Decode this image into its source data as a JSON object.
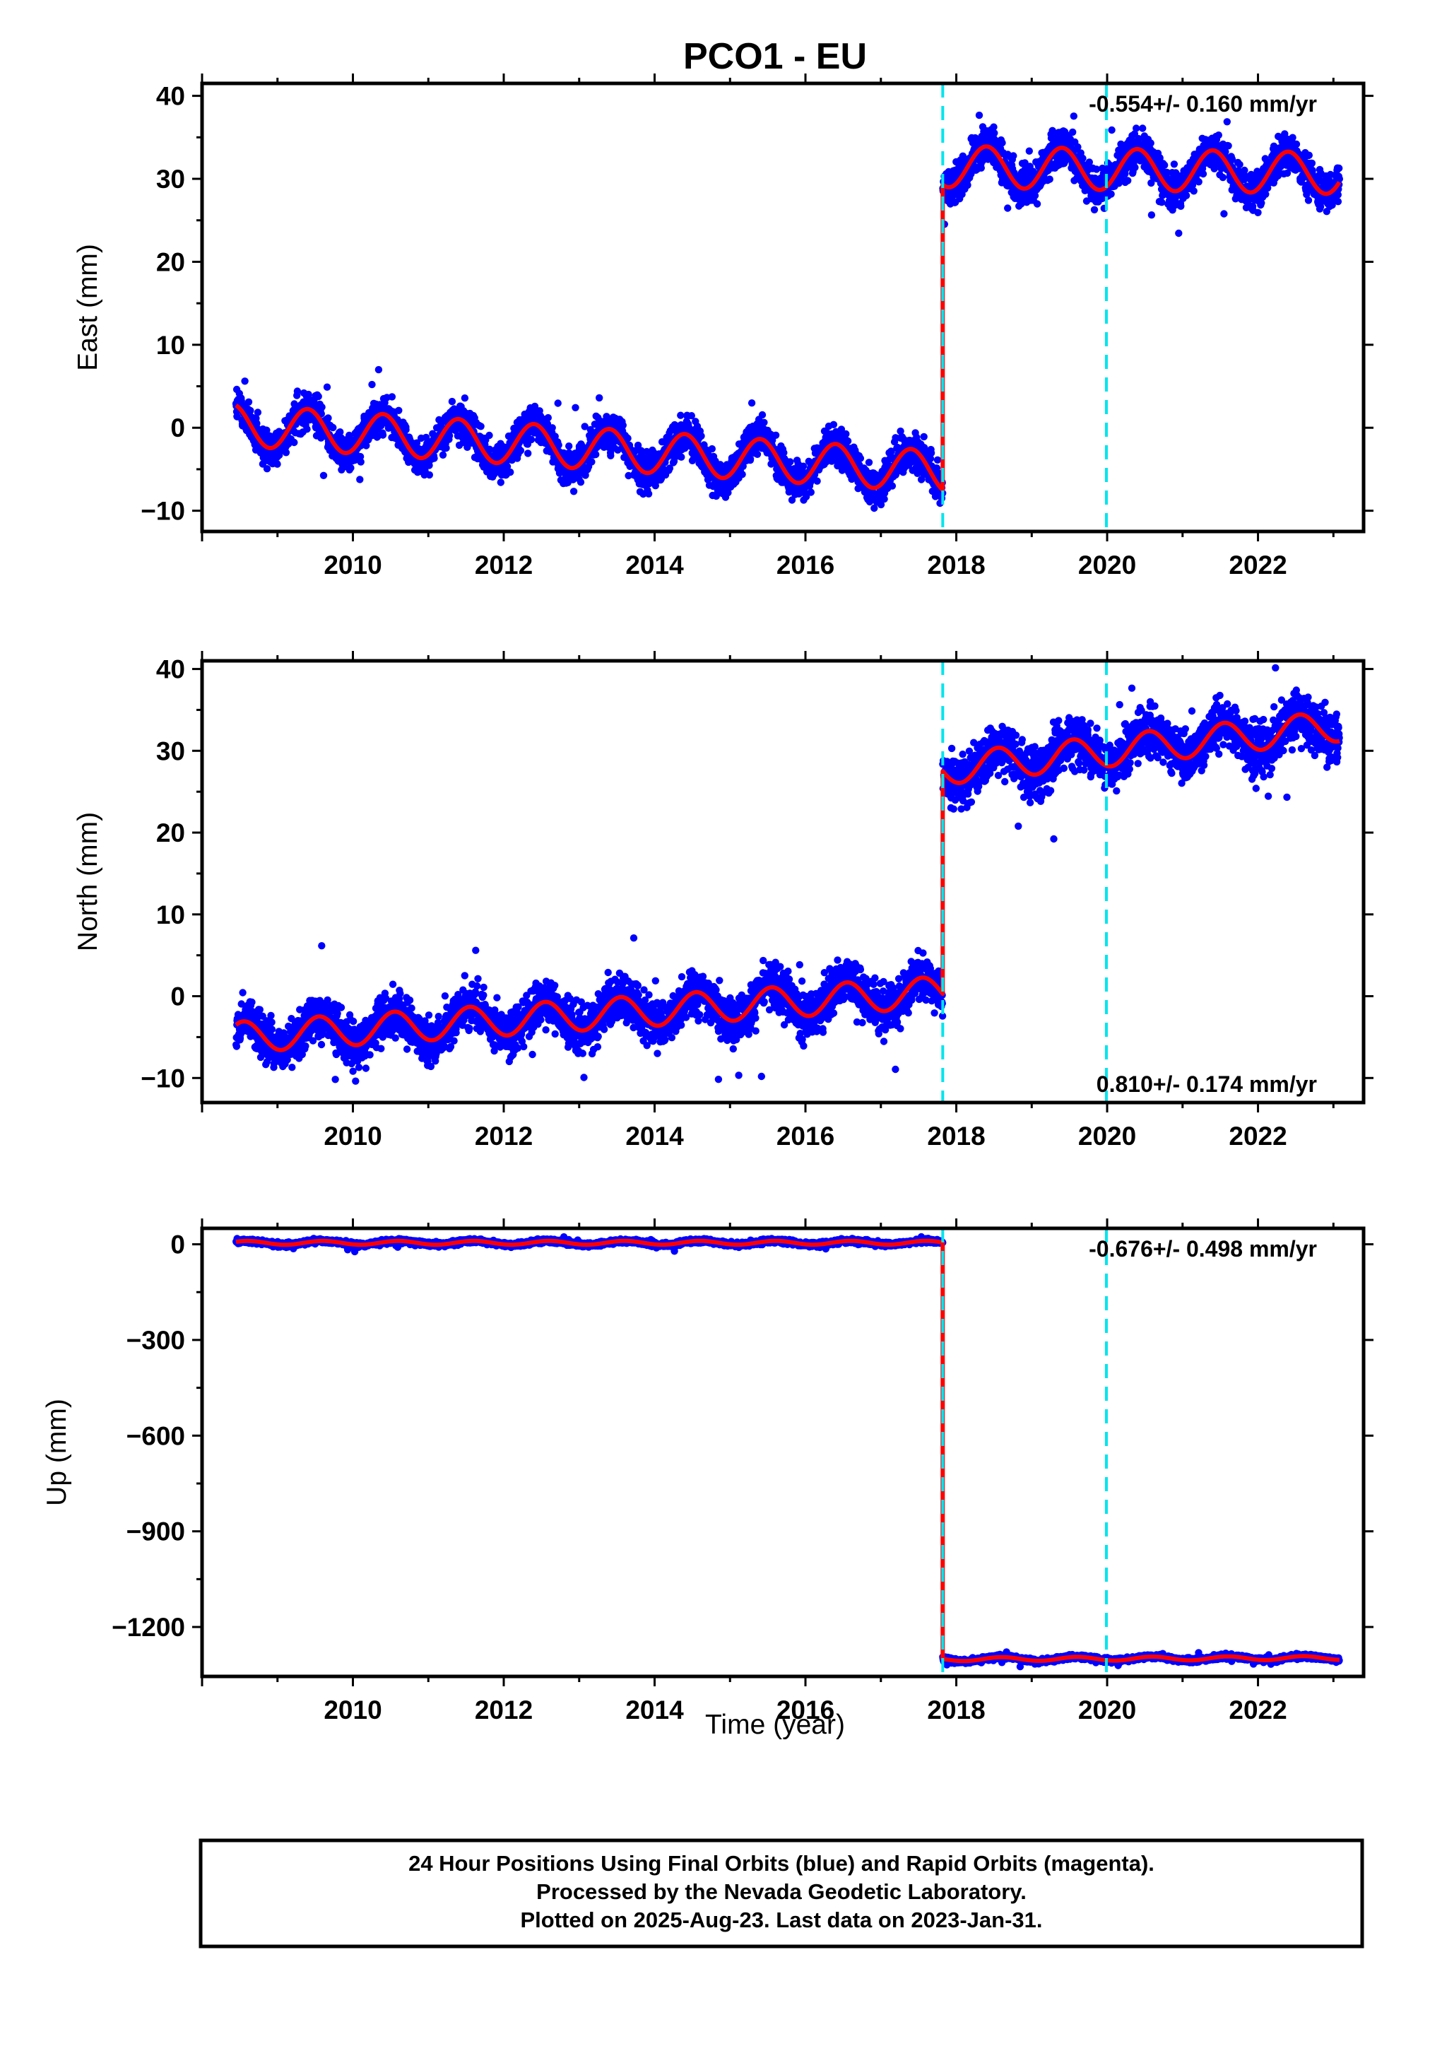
{
  "chart_data": {
    "type": "scatter",
    "title": "PCO1 - EU",
    "xlabel": "Time (year)",
    "xlim": [
      2008.0,
      2023.4
    ],
    "x_ticks": [
      2010,
      2012,
      2014,
      2016,
      2018,
      2020,
      2022
    ],
    "x_tick_labels": [
      "2010",
      "2012",
      "2014",
      "2016",
      "2018",
      "2020",
      "2022"
    ],
    "data_start": 2008.45,
    "data_end": 2023.08,
    "offset_epochs": [
      2017.82,
      2019.99
    ],
    "colors": {
      "data": "#0000ff",
      "model": "#ff0000",
      "offset_line": "#00e5ee",
      "frame": "#000000"
    },
    "panels": [
      {
        "name": "east",
        "ylabel": "East (mm)",
        "ylim": [
          -12.5,
          41.5
        ],
        "y_ticks": [
          -10,
          0,
          10,
          20,
          30,
          40
        ],
        "y_tick_labels": [
          "−10",
          "0",
          "10",
          "20",
          "30",
          "40"
        ],
        "rate_text": "-0.554+/- 0.160 mm/yr",
        "rate_position": "top-right",
        "series": [
          {
            "name": "model",
            "segment": "before offset",
            "start": 2008.45,
            "end": 2017.82,
            "value_at_start": 2.7,
            "value_at_end": -7.5,
            "annual_amplitude": 2.5,
            "annual_peak": 0.4,
            "scatter": 1.6
          },
          {
            "name": "model",
            "segment": "after offset",
            "start": 2017.82,
            "end": 2023.08,
            "value_at_start": 29.3,
            "value_at_end": 29.6,
            "annual_amplitude": 2.5,
            "annual_peak": 0.4,
            "scatter": 1.6
          }
        ]
      },
      {
        "name": "north",
        "ylabel": "North (mm)",
        "ylim": [
          -13,
          41
        ],
        "y_ticks": [
          -10,
          0,
          10,
          20,
          30,
          40
        ],
        "y_tick_labels": [
          "−10",
          "0",
          "10",
          "20",
          "30",
          "40"
        ],
        "rate_text": "0.810+/- 0.174 mm/yr",
        "rate_position": "bottom-right",
        "series": [
          {
            "name": "model",
            "segment": "before offset",
            "start": 2008.45,
            "end": 2017.82,
            "value_at_start": -3.5,
            "value_at_end": 0.3,
            "annual_amplitude": 1.9,
            "annual_peak": 0.55,
            "scatter": 2.0
          },
          {
            "name": "model",
            "segment": "after offset",
            "start": 2017.82,
            "end": 2023.08,
            "value_at_start": 27.5,
            "value_at_end": 31.2,
            "annual_amplitude": 1.9,
            "annual_peak": 0.55,
            "scatter": 2.2
          }
        ]
      },
      {
        "name": "up",
        "ylabel": "Up (mm)",
        "ylim": [
          -1355,
          50
        ],
        "y_ticks": [
          -1200,
          -900,
          -600,
          -300,
          0
        ],
        "y_tick_labels": [
          "−1200",
          "−900",
          "−600",
          "−300",
          "0"
        ],
        "rate_text": "-0.676+/- 0.498 mm/yr",
        "rate_position": "top-right",
        "series": [
          {
            "name": "model",
            "segment": "before offset",
            "start": 2008.45,
            "end": 2017.82,
            "value_at_start": 8,
            "value_at_end": 6,
            "annual_amplitude": 6,
            "annual_peak": 0.6,
            "scatter": 5
          },
          {
            "name": "model",
            "segment": "after offset",
            "start": 2017.82,
            "end": 2023.08,
            "value_at_start": -1300,
            "value_at_end": -1303,
            "annual_amplitude": 6,
            "annual_peak": 0.6,
            "scatter": 5
          }
        ]
      }
    ]
  },
  "footer": {
    "line1": "24 Hour Positions Using Final Orbits (blue) and Rapid Orbits (magenta).",
    "line2": "Processed by the Nevada Geodetic Laboratory.",
    "line3": "Plotted on 2025-Aug-23. Last data on 2023-Jan-31."
  }
}
